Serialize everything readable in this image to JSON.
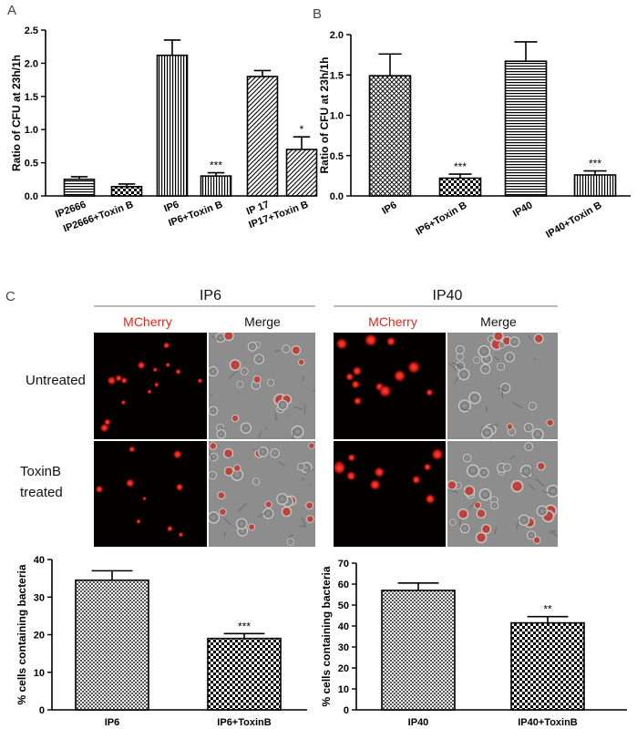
{
  "panel_labels": {
    "a": "A",
    "b": "B",
    "c": "C"
  },
  "micro": {
    "groups": [
      "IP6",
      "IP40"
    ],
    "columns": [
      "MCherry",
      "Merge"
    ],
    "rows": [
      "Untreated",
      "ToxinB\ntreated"
    ],
    "accent": "#e0261b"
  },
  "chart_data": [
    {
      "id": "A",
      "type": "bar",
      "ylabel": "Ratio of CFU at 23h/1h",
      "ylim": [
        0,
        2.5
      ],
      "yticks": [
        "0.0",
        "0.5",
        "1.0",
        "1.5",
        "2.0",
        "2.5"
      ],
      "categories": [
        "IP2666",
        "IP2666+Toxin B",
        "IP6",
        "IP6+Toxin B",
        "IP 17",
        "IP17+Toxin B"
      ],
      "values": [
        0.25,
        0.14,
        2.12,
        0.3,
        1.8,
        0.7
      ],
      "errors": [
        0.04,
        0.04,
        0.23,
        0.05,
        0.09,
        0.19
      ],
      "patterns": [
        "hlines",
        "checker",
        "vlines",
        "vlines",
        "diag",
        "diag"
      ],
      "significance": [
        "",
        "",
        "",
        "***",
        "",
        "*"
      ]
    },
    {
      "id": "B",
      "type": "bar",
      "ylabel": "Ratio of CFU at 23h/1h",
      "ylim": [
        0,
        2.0
      ],
      "yticks": [
        "0.0",
        "0.5",
        "1.0",
        "1.5",
        "2.0"
      ],
      "categories": [
        "IP6",
        "IP6+Toxin B",
        "IP40",
        "IP40+Toxin B"
      ],
      "values": [
        1.49,
        0.22,
        1.67,
        0.26
      ],
      "errors": [
        0.27,
        0.05,
        0.24,
        0.05
      ],
      "patterns": [
        "crosshatch",
        "checker",
        "hlines",
        "vlines"
      ],
      "significance": [
        "",
        "***",
        "",
        "***"
      ]
    },
    {
      "id": "C1",
      "type": "bar",
      "ylabel": "% cells containing bacteria",
      "ylim": [
        0,
        40
      ],
      "yticks": [
        "0",
        "10",
        "20",
        "30",
        "40"
      ],
      "categories": [
        "IP6",
        "IP6+ToxinB"
      ],
      "values": [
        34.5,
        19.0
      ],
      "errors": [
        2.5,
        1.3
      ],
      "patterns": [
        "finecheck",
        "checker"
      ],
      "significance": [
        "",
        "***"
      ]
    },
    {
      "id": "C2",
      "type": "bar",
      "ylabel": "% cells containing bacteria",
      "ylim": [
        0,
        70
      ],
      "yticks": [
        "0",
        "10",
        "20",
        "30",
        "40",
        "50",
        "60",
        "70"
      ],
      "categories": [
        "IP40",
        "IP40+ToxinB"
      ],
      "values": [
        57,
        41.5
      ],
      "errors": [
        3.5,
        3
      ],
      "patterns": [
        "finecheck",
        "checker"
      ],
      "significance": [
        "",
        "**"
      ]
    }
  ]
}
